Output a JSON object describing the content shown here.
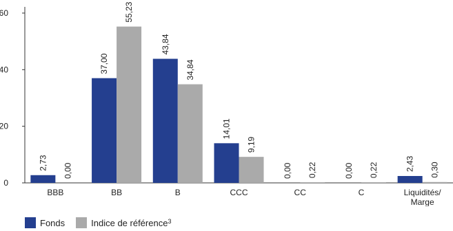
{
  "chart_data": {
    "type": "bar",
    "categories": [
      "BBB",
      "BB",
      "B",
      "CCC",
      "CC",
      "C",
      "Liquidités/\nMarge"
    ],
    "series": [
      {
        "name": "Fonds",
        "color": "#243f8f",
        "values": [
          2.73,
          37.0,
          43.84,
          14.01,
          0.0,
          0.0,
          2.43
        ],
        "labels": [
          "2,73",
          "37,00",
          "43,84",
          "14,01",
          "0,00",
          "0,00",
          "2,43"
        ]
      },
      {
        "name": "Indice de référence",
        "name_superscript": "3",
        "color": "#aaaaaa",
        "values": [
          0.0,
          55.23,
          34.84,
          9.19,
          0.22,
          0.22,
          0.3
        ],
        "labels": [
          "0,00",
          "55,23",
          "34,84",
          "9,19",
          "0,22",
          "0,22",
          "0,30"
        ]
      }
    ],
    "y_ticks": [
      "0",
      "20",
      "40",
      "60"
    ],
    "ylim": [
      0,
      60
    ],
    "grid": false,
    "legend_position": "bottom-left"
  },
  "legend": {
    "fonds": "Fonds",
    "indice": "Indice de référence",
    "indice_sup": "3"
  }
}
